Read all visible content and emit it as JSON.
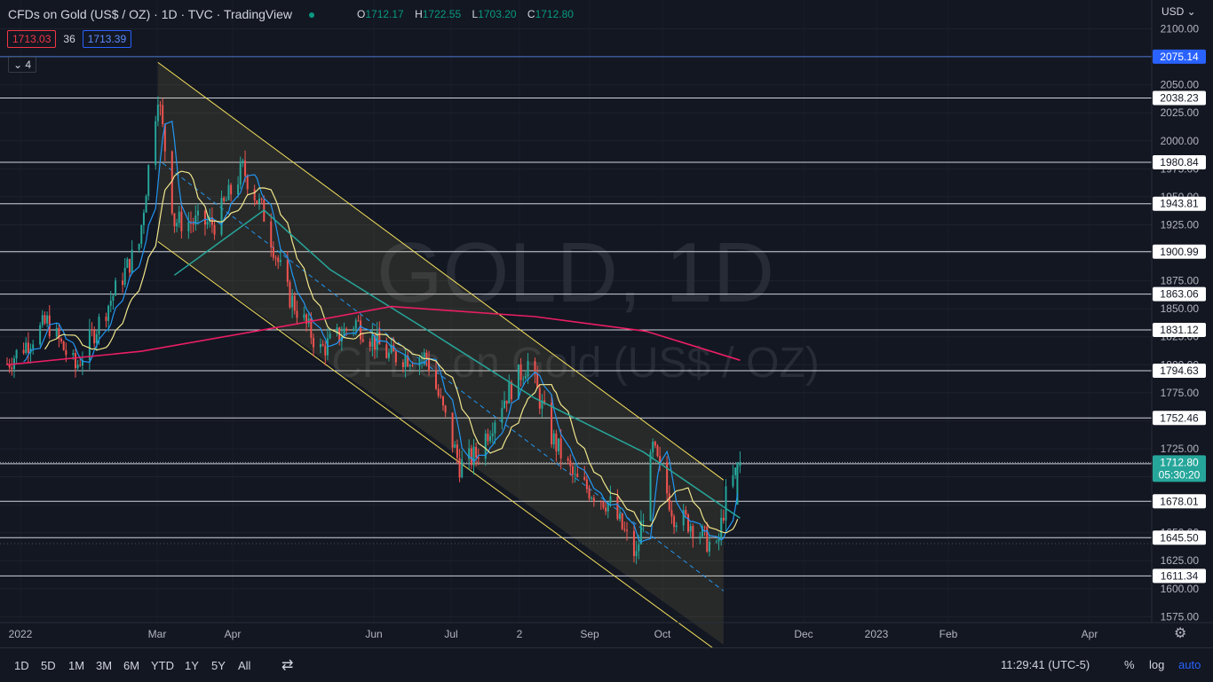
{
  "header": {
    "title": "CFDs on Gold (US$ / OZ) · 1D · TVC · TradingView",
    "ohlc": [
      {
        "key": "O",
        "value": "1712.17"
      },
      {
        "key": "H",
        "value": "1722.55"
      },
      {
        "key": "L",
        "value": "1703.20"
      },
      {
        "key": "C",
        "value": "1712.80"
      }
    ],
    "bid": "1713.03",
    "spread": "36",
    "ask": "1713.39",
    "indicators_collapsed": "4",
    "currency": "USD"
  },
  "watermark": {
    "symbol": "GOLD, 1D",
    "name": "CFDs on Gold (US$ / OZ)"
  },
  "bottom": {
    "timeframes": [
      "1D",
      "5D",
      "1M",
      "3M",
      "6M",
      "YTD",
      "1Y",
      "5Y",
      "All"
    ],
    "clock": "11:29:41 (UTC-5)",
    "percent": "%",
    "log": "log",
    "auto": "auto"
  },
  "colors": {
    "up": "#26a69a",
    "down": "#ef5350",
    "ma_short": "#2196f3",
    "ma_mid": "#f0e68c",
    "ma_long": "#26a69a",
    "ma_200": "#e91e63",
    "channel": "#f5e15c",
    "accent": "#2962ff"
  },
  "chart_data": {
    "type": "line",
    "title": "CFDs on Gold (US$ / OZ)",
    "x_ticks": [
      "2022",
      "Mar",
      "Apr",
      "Jun",
      "Jul",
      "2",
      "Sep",
      "Oct",
      "Dec",
      "2023",
      "Feb",
      "Apr"
    ],
    "y_ticks": [
      2100,
      2075,
      2050,
      2025,
      2000,
      1975,
      1950,
      1925,
      1900,
      1875,
      1850,
      1825,
      1800,
      1775,
      1750,
      1725,
      1700,
      1675,
      1650,
      1625,
      1600,
      1575
    ],
    "ylim": [
      1565,
      2110
    ],
    "horizontal_levels": [
      2075.14,
      2038.23,
      1980.84,
      1943.81,
      1900.99,
      1863.06,
      1831.12,
      1794.63,
      1752.46,
      1711.58,
      1678.01,
      1645.5,
      1611.34
    ],
    "last_price": {
      "value": "1712.80",
      "countdown": "05:30:20"
    },
    "price_path": [
      [
        "2022-01-03",
        1801
      ],
      [
        "2022-01-20",
        1838
      ],
      [
        "2022-02-01",
        1797
      ],
      [
        "2022-02-15",
        1854
      ],
      [
        "2022-02-28",
        1908
      ],
      [
        "2022-03-08",
        2043
      ],
      [
        "2022-03-15",
        1928
      ],
      [
        "2022-04-01",
        1926
      ],
      [
        "2022-04-13",
        1975
      ],
      [
        "2022-04-22",
        1934
      ],
      [
        "2022-05-02",
        1864
      ],
      [
        "2022-05-16",
        1813
      ],
      [
        "2022-05-31",
        1838
      ],
      [
        "2022-06-14",
        1808
      ],
      [
        "2022-06-30",
        1807
      ],
      [
        "2022-07-14",
        1710
      ],
      [
        "2022-07-21",
        1719
      ],
      [
        "2022-08-01",
        1767
      ],
      [
        "2022-08-12",
        1802
      ],
      [
        "2022-08-22",
        1736
      ],
      [
        "2022-09-01",
        1697
      ],
      [
        "2022-09-16",
        1675
      ],
      [
        "2022-09-27",
        1628
      ],
      [
        "2022-10-04",
        1725
      ],
      [
        "2022-10-13",
        1666
      ],
      [
        "2022-10-21",
        1657
      ],
      [
        "2022-10-31",
        1633
      ],
      [
        "2022-11-04",
        1682
      ],
      [
        "2022-11-10",
        1712.8
      ]
    ],
    "channel": {
      "upper": [
        [
          "2022-03-08",
          2070
        ],
        [
          "2022-11-03",
          1697
        ]
      ],
      "lower": [
        [
          "2022-03-08",
          1910
        ],
        [
          "2022-11-03",
          1550
        ]
      ],
      "mid": [
        [
          "2022-03-10",
          1980
        ],
        [
          "2022-11-03",
          1598
        ]
      ]
    },
    "ma_200": [
      [
        "2022-01-03",
        1800
      ],
      [
        "2022-03-01",
        1812
      ],
      [
        "2022-05-02",
        1835
      ],
      [
        "2022-06-15",
        1852
      ],
      [
        "2022-08-15",
        1843
      ],
      [
        "2022-10-01",
        1830
      ],
      [
        "2022-11-10",
        1804
      ]
    ],
    "ma_50": [
      [
        "2022-03-15",
        1880
      ],
      [
        "2022-04-22",
        1938
      ],
      [
        "2022-05-20",
        1885
      ],
      [
        "2022-07-01",
        1830
      ],
      [
        "2022-08-15",
        1770
      ],
      [
        "2022-09-30",
        1722
      ],
      [
        "2022-11-10",
        1663
      ]
    ]
  }
}
